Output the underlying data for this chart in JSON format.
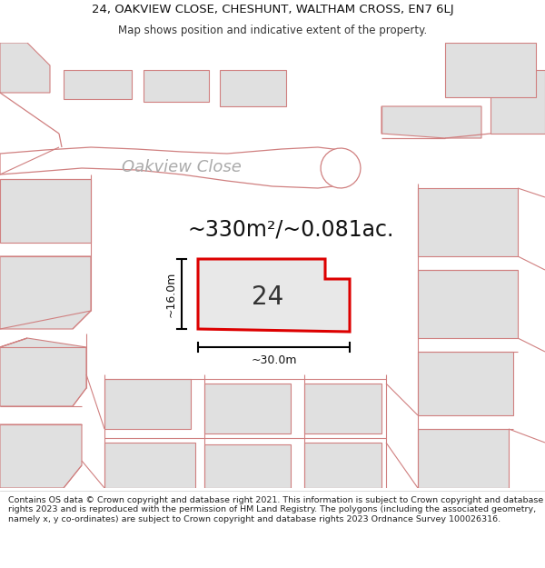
{
  "title_line1": "24, OAKVIEW CLOSE, CHESHUNT, WALTHAM CROSS, EN7 6LJ",
  "title_line2": "Map shows position and indicative extent of the property.",
  "footer_text": "Contains OS data © Crown copyright and database right 2021. This information is subject to Crown copyright and database rights 2023 and is reproduced with the permission of HM Land Registry. The polygons (including the associated geometry, namely x, y co-ordinates) are subject to Crown copyright and database rights 2023 Ordnance Survey 100026316.",
  "area_text": "~330m²/~0.081ac.",
  "label_16m": "~16.0m",
  "label_30m": "~30.0m",
  "label_24": "24",
  "bg_color": "#ffffff",
  "map_bg": "#ffffff",
  "building_fill": "#e0e0e0",
  "building_stroke": "#d08080",
  "road_stroke": "#d08080",
  "highlight_fill": "#e8e8e8",
  "highlight_stroke": "#dd0000",
  "road_label": "Oakview Close",
  "title_fontsize": 9.5,
  "subtitle_fontsize": 8.5,
  "area_fontsize": 17,
  "label_num_fontsize": 20,
  "dim_fontsize": 9,
  "road_label_fontsize": 13,
  "footer_fontsize": 6.8
}
